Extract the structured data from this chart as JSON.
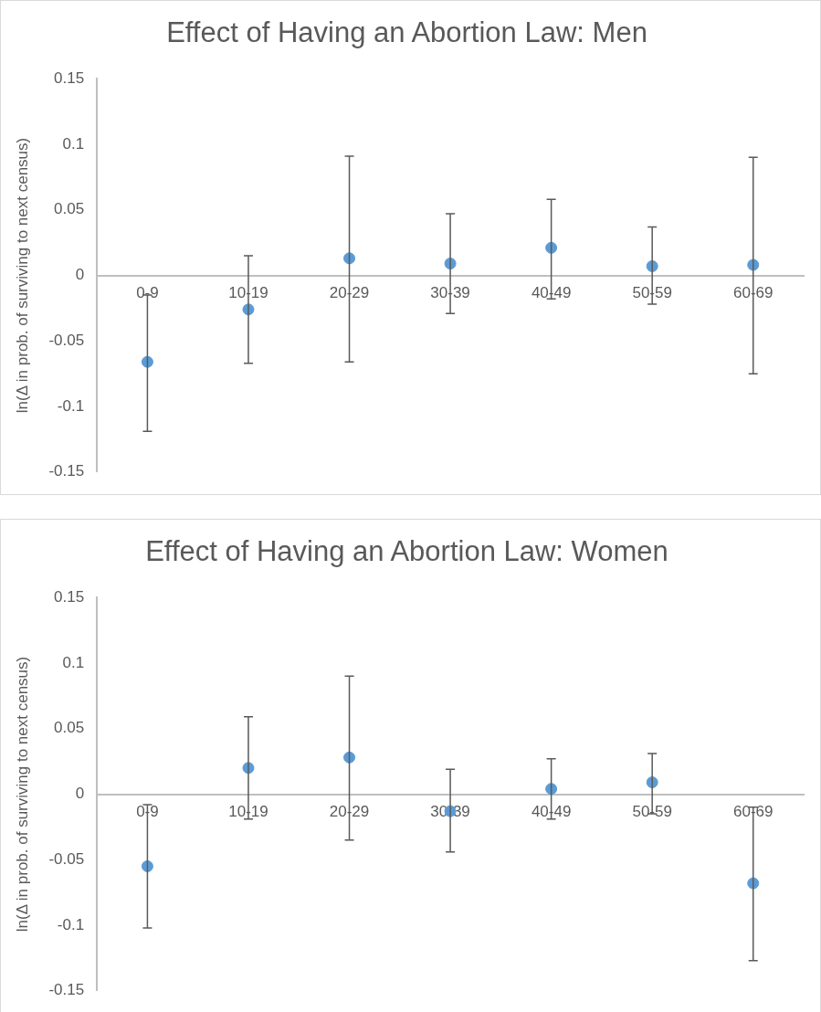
{
  "chart_data": [
    {
      "type": "scatter",
      "title": "Effect of Having an Abortion Law: Men",
      "ylabel": "ln(Δ in prob. of surviving to next census)",
      "categories": [
        "0-9",
        "10-19",
        "20-29",
        "30-39",
        "40-49",
        "50-59",
        "60-69"
      ],
      "color": "#5b9bd5",
      "marker": "circle",
      "grid": false,
      "values": [
        -0.066,
        -0.026,
        0.013,
        0.009,
        0.021,
        0.007,
        0.008
      ],
      "errors": [
        [
          -0.119,
          -0.015
        ],
        [
          -0.067,
          0.015
        ],
        [
          -0.066,
          0.091
        ],
        [
          -0.029,
          0.047
        ],
        [
          -0.018,
          0.058
        ],
        [
          -0.022,
          0.037
        ],
        [
          -0.075,
          0.09
        ]
      ],
      "ylim": [
        -0.15,
        0.15
      ],
      "yticks": [
        -0.15,
        -0.1,
        -0.05,
        0,
        0.05,
        0.1,
        0.15
      ]
    },
    {
      "type": "scatter",
      "title": "Effect of Having an Abortion Law: Women",
      "ylabel": "ln(Δ in prob. of surviving to next census)",
      "categories": [
        "0-9",
        "10-19",
        "20-29",
        "30-39",
        "40-49",
        "50-59",
        "60-69"
      ],
      "color": "#5b9bd5",
      "marker": "circle",
      "grid": false,
      "values": [
        -0.055,
        0.02,
        0.028,
        -0.013,
        0.004,
        0.009,
        -0.068
      ],
      "errors": [
        [
          -0.102,
          -0.008
        ],
        [
          -0.019,
          0.059
        ],
        [
          -0.035,
          0.09
        ],
        [
          -0.044,
          0.019
        ],
        [
          -0.019,
          0.027
        ],
        [
          -0.015,
          0.031
        ],
        [
          -0.127,
          -0.01
        ]
      ],
      "ylim": [
        -0.15,
        0.15
      ],
      "yticks": [
        -0.15,
        -0.1,
        -0.05,
        0,
        0.05,
        0.1,
        0.15
      ]
    }
  ]
}
